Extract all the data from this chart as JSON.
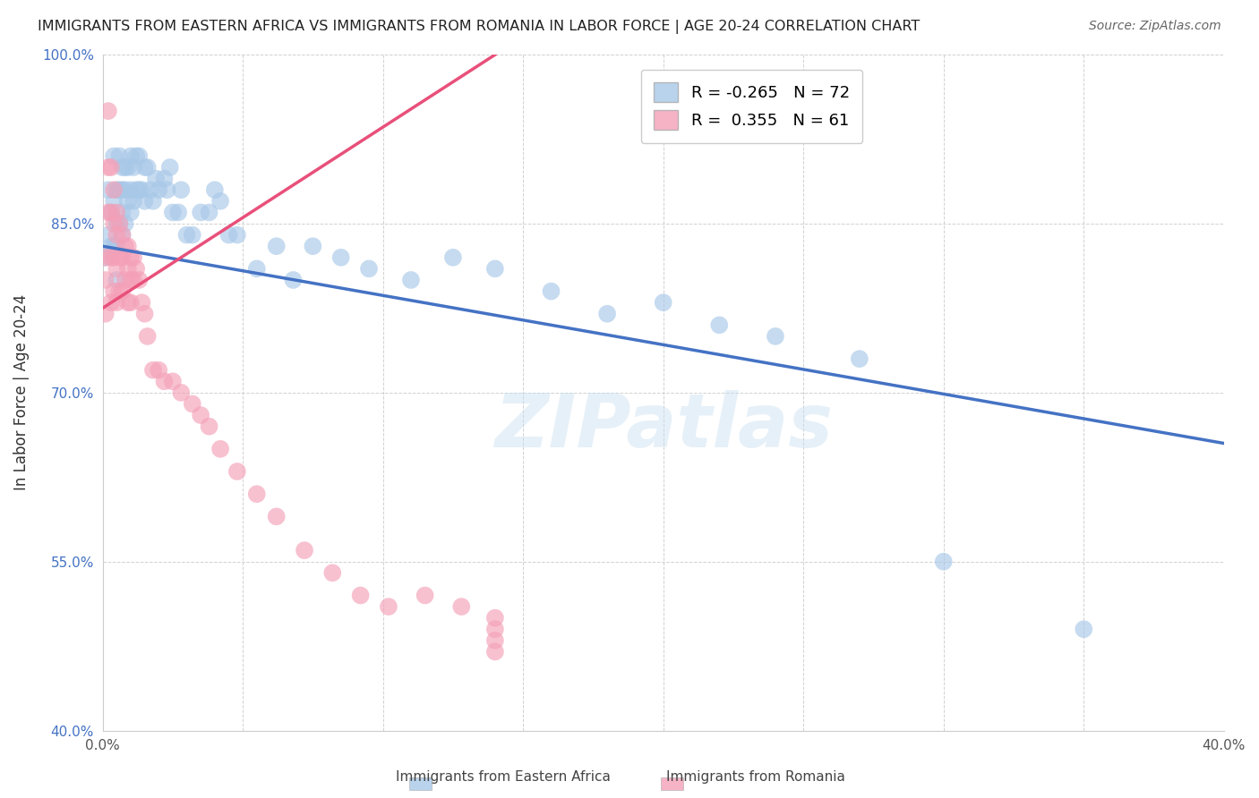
{
  "title": "IMMIGRANTS FROM EASTERN AFRICA VS IMMIGRANTS FROM ROMANIA IN LABOR FORCE | AGE 20-24 CORRELATION CHART",
  "source": "Source: ZipAtlas.com",
  "ylabel": "In Labor Force | Age 20-24",
  "xlim": [
    0.0,
    0.4
  ],
  "ylim": [
    0.4,
    1.0
  ],
  "xtick_positions": [
    0.0,
    0.05,
    0.1,
    0.15,
    0.2,
    0.25,
    0.3,
    0.35,
    0.4
  ],
  "xtick_labels": [
    "0.0%",
    "",
    "",
    "",
    "",
    "",
    "",
    "",
    "40.0%"
  ],
  "ytick_positions": [
    0.4,
    0.55,
    0.7,
    0.85,
    1.0
  ],
  "ytick_labels": [
    "40.0%",
    "55.0%",
    "70.0%",
    "85.0%",
    "100.0%"
  ],
  "blue_R": -0.265,
  "blue_N": 72,
  "pink_R": 0.355,
  "pink_N": 61,
  "blue_color": "#a8c8e8",
  "pink_color": "#f4a0b8",
  "blue_line_color": "#4472c4",
  "pink_line_color": "#e8507a",
  "watermark": "ZIPatlas",
  "blue_line_x0": 0.0,
  "blue_line_y0": 0.83,
  "blue_line_x1": 0.4,
  "blue_line_y1": 0.655,
  "pink_line_x0": 0.0,
  "pink_line_y0": 0.775,
  "pink_line_x1": 0.14,
  "pink_line_y1": 1.0,
  "blue_scatter_x": [
    0.001,
    0.002,
    0.002,
    0.003,
    0.003,
    0.004,
    0.004,
    0.004,
    0.005,
    0.005,
    0.005,
    0.005,
    0.006,
    0.006,
    0.006,
    0.007,
    0.007,
    0.007,
    0.007,
    0.008,
    0.008,
    0.008,
    0.009,
    0.009,
    0.01,
    0.01,
    0.01,
    0.011,
    0.011,
    0.012,
    0.012,
    0.013,
    0.013,
    0.014,
    0.015,
    0.015,
    0.016,
    0.017,
    0.018,
    0.019,
    0.02,
    0.022,
    0.023,
    0.024,
    0.025,
    0.027,
    0.028,
    0.03,
    0.032,
    0.035,
    0.038,
    0.04,
    0.042,
    0.045,
    0.048,
    0.055,
    0.062,
    0.068,
    0.075,
    0.085,
    0.095,
    0.11,
    0.125,
    0.14,
    0.16,
    0.18,
    0.2,
    0.22,
    0.24,
    0.27,
    0.3,
    0.35
  ],
  "blue_scatter_y": [
    0.82,
    0.88,
    0.84,
    0.86,
    0.83,
    0.91,
    0.87,
    0.83,
    0.88,
    0.85,
    0.83,
    0.8,
    0.91,
    0.88,
    0.85,
    0.9,
    0.88,
    0.86,
    0.84,
    0.9,
    0.88,
    0.85,
    0.9,
    0.87,
    0.91,
    0.88,
    0.86,
    0.9,
    0.87,
    0.91,
    0.88,
    0.91,
    0.88,
    0.88,
    0.9,
    0.87,
    0.9,
    0.88,
    0.87,
    0.89,
    0.88,
    0.89,
    0.88,
    0.9,
    0.86,
    0.86,
    0.88,
    0.84,
    0.84,
    0.86,
    0.86,
    0.88,
    0.87,
    0.84,
    0.84,
    0.81,
    0.83,
    0.8,
    0.83,
    0.82,
    0.81,
    0.8,
    0.82,
    0.81,
    0.79,
    0.77,
    0.78,
    0.76,
    0.75,
    0.73,
    0.55,
    0.49
  ],
  "pink_scatter_x": [
    0.001,
    0.001,
    0.001,
    0.002,
    0.002,
    0.002,
    0.003,
    0.003,
    0.003,
    0.003,
    0.004,
    0.004,
    0.004,
    0.004,
    0.005,
    0.005,
    0.005,
    0.005,
    0.006,
    0.006,
    0.006,
    0.007,
    0.007,
    0.007,
    0.008,
    0.008,
    0.009,
    0.009,
    0.009,
    0.01,
    0.01,
    0.01,
    0.011,
    0.011,
    0.012,
    0.013,
    0.014,
    0.015,
    0.016,
    0.018,
    0.02,
    0.022,
    0.025,
    0.028,
    0.032,
    0.035,
    0.038,
    0.042,
    0.048,
    0.055,
    0.062,
    0.072,
    0.082,
    0.092,
    0.102,
    0.115,
    0.128,
    0.14,
    0.14,
    0.14,
    0.14
  ],
  "pink_scatter_y": [
    0.82,
    0.8,
    0.77,
    0.95,
    0.9,
    0.86,
    0.9,
    0.86,
    0.82,
    0.78,
    0.88,
    0.85,
    0.82,
    0.79,
    0.86,
    0.84,
    0.81,
    0.78,
    0.85,
    0.82,
    0.79,
    0.84,
    0.82,
    0.79,
    0.83,
    0.8,
    0.83,
    0.81,
    0.78,
    0.82,
    0.8,
    0.78,
    0.82,
    0.8,
    0.81,
    0.8,
    0.78,
    0.77,
    0.75,
    0.72,
    0.72,
    0.71,
    0.71,
    0.7,
    0.69,
    0.68,
    0.67,
    0.65,
    0.63,
    0.61,
    0.59,
    0.56,
    0.54,
    0.52,
    0.51,
    0.52,
    0.51,
    0.5,
    0.49,
    0.48,
    0.47
  ]
}
